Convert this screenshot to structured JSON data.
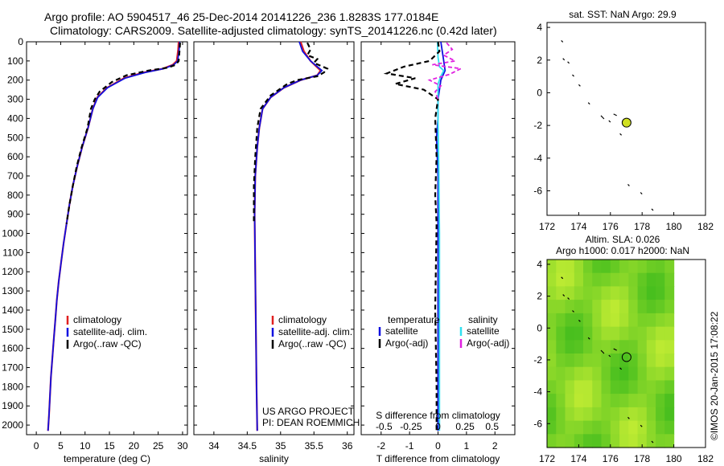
{
  "title_line1": "Argo profile: AO 5904517_46 25-Dec-2014 20141226_236 1.8283S 177.0184E",
  "title_line2": "Climatology: CARS2009. Satellite-adjusted climatology: synTS_20141226.nc (0.42d later)",
  "side_label": "©IMOS 20-Jan-2015 17:08:22",
  "project_line1": "US ARGO PROJECT",
  "project_line2": "PI: DEAN ROEMMICH",
  "colors": {
    "climatology": "#e02020",
    "satellite": "#1010e0",
    "argo": "#000000",
    "sal_satellite": "#30e0f0",
    "sal_argo": "#e020e0",
    "sla_field": "#80e040",
    "float_marker": "#d0e020"
  },
  "chart_data": [
    {
      "id": "temperature",
      "type": "line",
      "xlabel": "temperature (deg C)",
      "ylabel": "",
      "xlim": [
        -2,
        31
      ],
      "ylim": [
        2050,
        0
      ],
      "xticks": [
        0,
        5,
        10,
        15,
        20,
        25,
        30
      ],
      "yticks": [
        0,
        100,
        200,
        300,
        400,
        500,
        600,
        700,
        800,
        900,
        1000,
        1100,
        1200,
        1300,
        1400,
        1500,
        1600,
        1700,
        1800,
        1900,
        2000
      ],
      "legend": [
        "climatology",
        "satellite-adj. clim.",
        "Argo(..raw -QC)"
      ],
      "series": [
        {
          "name": "climatology",
          "points": [
            [
              29.2,
              0
            ],
            [
              29.1,
              40
            ],
            [
              28.8,
              100
            ],
            [
              28.0,
              120
            ],
            [
              26.0,
              140
            ],
            [
              22.0,
              160
            ],
            [
              18.0,
              190
            ],
            [
              14.5,
              240
            ],
            [
              12.5,
              290
            ],
            [
              11.6,
              350
            ],
            [
              10.6,
              450
            ],
            [
              9.4,
              550
            ],
            [
              8.4,
              650
            ],
            [
              7.5,
              750
            ],
            [
              6.8,
              850
            ],
            [
              6.2,
              950
            ],
            [
              5.6,
              1050
            ],
            [
              5.1,
              1150
            ],
            [
              4.6,
              1250
            ],
            [
              4.2,
              1350
            ],
            [
              3.9,
              1450
            ],
            [
              3.6,
              1550
            ],
            [
              3.3,
              1650
            ],
            [
              3.0,
              1750
            ],
            [
              2.8,
              1850
            ],
            [
              2.6,
              1950
            ],
            [
              2.4,
              2030
            ]
          ]
        },
        {
          "name": "satellite-adj. clim.",
          "points": [
            [
              29.4,
              0
            ],
            [
              29.3,
              40
            ],
            [
              29.0,
              100
            ],
            [
              28.2,
              120
            ],
            [
              26.2,
              140
            ],
            [
              22.3,
              160
            ],
            [
              18.2,
              190
            ],
            [
              14.6,
              240
            ],
            [
              12.6,
              290
            ],
            [
              11.6,
              350
            ],
            [
              10.6,
              450
            ],
            [
              9.4,
              550
            ],
            [
              8.4,
              650
            ],
            [
              7.5,
              750
            ],
            [
              6.8,
              850
            ],
            [
              6.2,
              950
            ],
            [
              5.6,
              1050
            ],
            [
              5.1,
              1150
            ],
            [
              4.6,
              1250
            ],
            [
              4.2,
              1350
            ],
            [
              3.9,
              1450
            ],
            [
              3.6,
              1550
            ],
            [
              3.3,
              1650
            ],
            [
              3.0,
              1750
            ],
            [
              2.8,
              1850
            ],
            [
              2.6,
              1950
            ],
            [
              2.4,
              2030
            ]
          ]
        },
        {
          "name": "Argo(..raw -QC)",
          "points": [
            [
              29.5,
              5
            ],
            [
              29.4,
              40
            ],
            [
              29.2,
              100
            ],
            [
              28.6,
              120
            ],
            [
              27.0,
              135
            ],
            [
              23.0,
              150
            ],
            [
              18.5,
              175
            ],
            [
              15.5,
              210
            ],
            [
              13.0,
              260
            ],
            [
              12.0,
              300
            ],
            [
              11.2,
              350
            ],
            [
              10.5,
              450
            ],
            [
              9.3,
              550
            ],
            [
              8.3,
              650
            ],
            [
              7.5,
              750
            ],
            [
              6.8,
              850
            ],
            [
              6.2,
              950
            ]
          ]
        }
      ]
    },
    {
      "id": "salinity",
      "type": "line",
      "xlabel": "salinity",
      "ylabel": "",
      "xlim": [
        33.7,
        36.1
      ],
      "ylim": [
        2050,
        0
      ],
      "xticks": [
        34,
        34.5,
        35,
        35.5,
        36
      ],
      "legend": [
        "climatology",
        "satellite-adj. clim.",
        "Argo(..raw -QC)"
      ],
      "series": [
        {
          "name": "climatology",
          "points": [
            [
              35.3,
              0
            ],
            [
              35.35,
              50
            ],
            [
              35.45,
              100
            ],
            [
              35.6,
              150
            ],
            [
              35.55,
              175
            ],
            [
              35.3,
              200
            ],
            [
              35.05,
              240
            ],
            [
              34.85,
              290
            ],
            [
              34.73,
              350
            ],
            [
              34.68,
              450
            ],
            [
              34.65,
              550
            ],
            [
              34.62,
              700
            ],
            [
              34.61,
              900
            ],
            [
              34.62,
              1200
            ],
            [
              34.63,
              1500
            ],
            [
              34.64,
              1800
            ],
            [
              34.65,
              2030
            ]
          ]
        },
        {
          "name": "satellite-adj. clim.",
          "points": [
            [
              35.28,
              0
            ],
            [
              35.33,
              50
            ],
            [
              35.45,
              100
            ],
            [
              35.62,
              150
            ],
            [
              35.55,
              175
            ],
            [
              35.3,
              200
            ],
            [
              35.05,
              240
            ],
            [
              34.85,
              290
            ],
            [
              34.73,
              350
            ],
            [
              34.68,
              450
            ],
            [
              34.65,
              550
            ],
            [
              34.62,
              700
            ],
            [
              34.61,
              900
            ],
            [
              34.62,
              1200
            ],
            [
              34.63,
              1500
            ],
            [
              34.64,
              1800
            ],
            [
              34.65,
              2030
            ]
          ]
        },
        {
          "name": "Argo(..raw -QC)",
          "points": [
            [
              35.4,
              5
            ],
            [
              35.45,
              40
            ],
            [
              35.4,
              70
            ],
            [
              35.55,
              90
            ],
            [
              35.5,
              110
            ],
            [
              35.7,
              140
            ],
            [
              35.65,
              160
            ],
            [
              35.55,
              180
            ],
            [
              35.25,
              200
            ],
            [
              35.1,
              220
            ],
            [
              34.85,
              280
            ],
            [
              34.7,
              350
            ],
            [
              34.65,
              450
            ],
            [
              34.62,
              600
            ],
            [
              34.6,
              750
            ],
            [
              34.6,
              900
            ],
            [
              34.6,
              950
            ]
          ]
        }
      ]
    },
    {
      "id": "difference",
      "type": "line",
      "xlabel": "T difference from climatology",
      "xlabel_top": "S difference from climatology",
      "xlim": [
        -2.7,
        2.7
      ],
      "ylim": [
        2050,
        0
      ],
      "xticks_bottom": [
        -2,
        -1,
        0,
        1,
        2
      ],
      "xticks_top_labels": [
        "-0.5",
        "-0.25",
        "0",
        "0.25",
        "0.5"
      ],
      "xticks_top_positions": [
        -1.9,
        -0.95,
        0,
        0.95,
        1.9
      ],
      "legend": [
        "temperature",
        "salinity",
        "satellite",
        "Argo(-adj)",
        "satellite",
        "Argo(-adj)"
      ],
      "series": [
        {
          "name": "T satellite",
          "points": [
            [
              0.1,
              0
            ],
            [
              0.15,
              50
            ],
            [
              0.2,
              100
            ],
            [
              0.25,
              150
            ],
            [
              0.1,
              200
            ],
            [
              0.05,
              250
            ],
            [
              0.0,
              300
            ],
            [
              0.0,
              400
            ],
            [
              -0.05,
              500
            ],
            [
              0.0,
              700
            ],
            [
              0.0,
              1000
            ],
            [
              0.0,
              1500
            ],
            [
              0.0,
              2030
            ]
          ]
        },
        {
          "name": "S satellite",
          "points": [
            [
              -0.02,
              0
            ],
            [
              0.0,
              80
            ],
            [
              0.05,
              130
            ],
            [
              0.2,
              150
            ],
            [
              0.1,
              180
            ],
            [
              0.0,
              220
            ],
            [
              0.0,
              400
            ],
            [
              0.03,
              700
            ],
            [
              0.05,
              1000
            ],
            [
              0.05,
              1500
            ],
            [
              0.05,
              2030
            ]
          ]
        },
        {
          "name": "T Argo(-adj)",
          "points": [
            [
              0.0,
              0
            ],
            [
              0.05,
              50
            ],
            [
              -0.3,
              100
            ],
            [
              -1.2,
              130
            ],
            [
              -1.8,
              165
            ],
            [
              -0.8,
              190
            ],
            [
              -1.5,
              220
            ],
            [
              -0.5,
              250
            ],
            [
              0.0,
              300
            ],
            [
              -0.1,
              400
            ],
            [
              -0.05,
              600
            ],
            [
              -0.1,
              800
            ],
            [
              -0.05,
              950
            ],
            [
              -0.1,
              1400
            ],
            [
              -0.05,
              1800
            ],
            [
              -0.05,
              2030
            ]
          ]
        },
        {
          "name": "S Argo(-adj)",
          "points": [
            [
              0.3,
              5
            ],
            [
              0.5,
              40
            ],
            [
              0.2,
              70
            ],
            [
              0.6,
              100
            ],
            [
              -0.2,
              120
            ],
            [
              0.8,
              140
            ],
            [
              0.4,
              170
            ],
            [
              -0.3,
              200
            ],
            [
              0.1,
              230
            ],
            [
              -0.1,
              260
            ],
            [
              0.0,
              300
            ]
          ]
        }
      ]
    },
    {
      "id": "sst_map",
      "type": "scatter",
      "title": "sat. SST: NaN Argo: 29.9",
      "xlim": [
        172,
        182
      ],
      "ylim": [
        -7.5,
        4.3
      ],
      "xticks": [
        172,
        174,
        176,
        178,
        180,
        182
      ],
      "yticks": [
        4,
        2,
        0,
        -2,
        -4,
        -6
      ],
      "float_position": [
        177.02,
        -1.83
      ]
    },
    {
      "id": "sla_map",
      "type": "heatmap",
      "title_line1": "Altim. SLA: 0.026",
      "title_line2": "Argo h1000: 0.017 h2000: NaN",
      "xlim": [
        172,
        182
      ],
      "ylim": [
        -7.5,
        4.3
      ],
      "xticks": [
        172,
        174,
        176,
        178,
        180,
        182
      ],
      "yticks": [
        4,
        2,
        0,
        -2,
        -4,
        -6
      ],
      "field_extent_lon": [
        172,
        180
      ],
      "float_position": [
        177.02,
        -1.83
      ]
    }
  ]
}
